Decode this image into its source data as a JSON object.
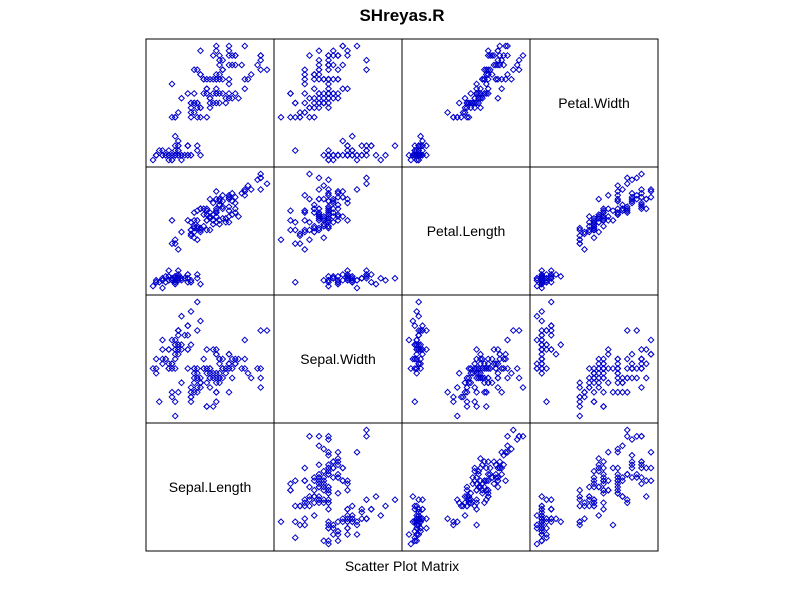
{
  "title": "SHreyas.R",
  "xlabel": "Scatter Plot Matrix",
  "colors": {
    "points": "#0000cc",
    "frame": "#000000",
    "background": "#ffffff"
  },
  "chart_data": {
    "type": "scatter",
    "title": "SHreyas.R",
    "xlabel": "Scatter Plot Matrix",
    "variables": [
      "Sepal.Length",
      "Sepal.Width",
      "Petal.Length",
      "Petal.Width"
    ],
    "diagonal_labels": [
      "Sepal.Length",
      "Sepal.Width",
      "Petal.Length",
      "Petal.Width"
    ],
    "layout": "diagonal from bottom-left to top-right",
    "point_style": "open diamond",
    "ranges": {
      "Sepal.Length": [
        4.3,
        7.9
      ],
      "Sepal.Width": [
        2.0,
        4.4
      ],
      "Petal.Length": [
        1.0,
        6.9
      ],
      "Petal.Width": [
        0.1,
        2.5
      ]
    },
    "rows": [
      [
        5.1,
        3.5,
        1.4,
        0.2
      ],
      [
        4.9,
        3.0,
        1.4,
        0.2
      ],
      [
        4.7,
        3.2,
        1.3,
        0.2
      ],
      [
        4.6,
        3.1,
        1.5,
        0.2
      ],
      [
        5.0,
        3.6,
        1.4,
        0.2
      ],
      [
        5.4,
        3.9,
        1.7,
        0.4
      ],
      [
        4.6,
        3.4,
        1.4,
        0.3
      ],
      [
        5.0,
        3.4,
        1.5,
        0.2
      ],
      [
        4.4,
        2.9,
        1.4,
        0.2
      ],
      [
        4.9,
        3.1,
        1.5,
        0.1
      ],
      [
        5.4,
        3.7,
        1.5,
        0.2
      ],
      [
        4.8,
        3.4,
        1.6,
        0.2
      ],
      [
        4.8,
        3.0,
        1.4,
        0.1
      ],
      [
        4.3,
        3.0,
        1.1,
        0.1
      ],
      [
        5.8,
        4.0,
        1.2,
        0.2
      ],
      [
        5.7,
        4.4,
        1.5,
        0.4
      ],
      [
        5.4,
        3.9,
        1.3,
        0.4
      ],
      [
        5.1,
        3.5,
        1.4,
        0.3
      ],
      [
        5.7,
        3.8,
        1.7,
        0.3
      ],
      [
        5.1,
        3.8,
        1.5,
        0.3
      ],
      [
        5.4,
        3.4,
        1.7,
        0.2
      ],
      [
        5.1,
        3.7,
        1.5,
        0.4
      ],
      [
        4.6,
        3.6,
        1.0,
        0.2
      ],
      [
        5.1,
        3.3,
        1.7,
        0.5
      ],
      [
        4.8,
        3.4,
        1.9,
        0.2
      ],
      [
        5.0,
        3.0,
        1.6,
        0.2
      ],
      [
        5.0,
        3.4,
        1.6,
        0.4
      ],
      [
        5.2,
        3.5,
        1.5,
        0.2
      ],
      [
        5.2,
        3.4,
        1.4,
        0.2
      ],
      [
        4.7,
        3.2,
        1.6,
        0.2
      ],
      [
        4.8,
        3.1,
        1.6,
        0.2
      ],
      [
        5.4,
        3.4,
        1.5,
        0.4
      ],
      [
        5.2,
        4.1,
        1.5,
        0.1
      ],
      [
        5.5,
        4.2,
        1.4,
        0.2
      ],
      [
        4.9,
        3.1,
        1.5,
        0.2
      ],
      [
        5.0,
        3.2,
        1.2,
        0.2
      ],
      [
        5.5,
        3.5,
        1.3,
        0.2
      ],
      [
        4.9,
        3.6,
        1.4,
        0.1
      ],
      [
        4.4,
        3.0,
        1.3,
        0.2
      ],
      [
        5.1,
        3.4,
        1.5,
        0.2
      ],
      [
        5.0,
        3.5,
        1.3,
        0.3
      ],
      [
        4.5,
        2.3,
        1.3,
        0.3
      ],
      [
        4.4,
        3.2,
        1.3,
        0.2
      ],
      [
        5.0,
        3.5,
        1.6,
        0.6
      ],
      [
        5.1,
        3.8,
        1.9,
        0.4
      ],
      [
        4.8,
        3.0,
        1.4,
        0.3
      ],
      [
        5.1,
        3.8,
        1.6,
        0.2
      ],
      [
        4.6,
        3.2,
        1.4,
        0.2
      ],
      [
        5.3,
        3.7,
        1.5,
        0.2
      ],
      [
        5.0,
        3.3,
        1.4,
        0.2
      ],
      [
        7.0,
        3.2,
        4.7,
        1.4
      ],
      [
        6.4,
        3.2,
        4.5,
        1.5
      ],
      [
        6.9,
        3.1,
        4.9,
        1.5
      ],
      [
        5.5,
        2.3,
        4.0,
        1.3
      ],
      [
        6.5,
        2.8,
        4.6,
        1.5
      ],
      [
        5.7,
        2.8,
        4.5,
        1.3
      ],
      [
        6.3,
        3.3,
        4.7,
        1.6
      ],
      [
        4.9,
        2.4,
        3.3,
        1.0
      ],
      [
        6.6,
        2.9,
        4.6,
        1.3
      ],
      [
        5.2,
        2.7,
        3.9,
        1.4
      ],
      [
        5.0,
        2.0,
        3.5,
        1.0
      ],
      [
        5.9,
        3.0,
        4.2,
        1.5
      ],
      [
        6.0,
        2.2,
        4.0,
        1.0
      ],
      [
        6.1,
        2.9,
        4.7,
        1.4
      ],
      [
        5.6,
        2.9,
        3.6,
        1.3
      ],
      [
        6.7,
        3.1,
        4.4,
        1.4
      ],
      [
        5.6,
        3.0,
        4.5,
        1.5
      ],
      [
        5.8,
        2.7,
        4.1,
        1.0
      ],
      [
        6.2,
        2.2,
        4.5,
        1.5
      ],
      [
        5.6,
        2.5,
        3.9,
        1.1
      ],
      [
        5.9,
        3.2,
        4.8,
        1.8
      ],
      [
        6.1,
        2.8,
        4.0,
        1.3
      ],
      [
        6.3,
        2.5,
        4.9,
        1.5
      ],
      [
        6.1,
        2.8,
        4.7,
        1.2
      ],
      [
        6.4,
        2.9,
        4.3,
        1.3
      ],
      [
        6.6,
        3.0,
        4.4,
        1.4
      ],
      [
        6.8,
        2.8,
        4.8,
        1.4
      ],
      [
        6.7,
        3.0,
        5.0,
        1.7
      ],
      [
        6.0,
        2.9,
        4.5,
        1.5
      ],
      [
        5.7,
        2.6,
        3.5,
        1.0
      ],
      [
        5.5,
        2.4,
        3.8,
        1.1
      ],
      [
        5.5,
        2.4,
        3.7,
        1.0
      ],
      [
        5.8,
        2.7,
        3.9,
        1.2
      ],
      [
        6.0,
        2.7,
        5.1,
        1.6
      ],
      [
        5.4,
        3.0,
        4.5,
        1.5
      ],
      [
        6.0,
        3.4,
        4.5,
        1.6
      ],
      [
        6.7,
        3.1,
        4.7,
        1.5
      ],
      [
        6.3,
        2.3,
        4.4,
        1.3
      ],
      [
        5.6,
        3.0,
        4.1,
        1.3
      ],
      [
        5.5,
        2.5,
        4.0,
        1.3
      ],
      [
        5.5,
        2.6,
        4.4,
        1.2
      ],
      [
        6.1,
        3.0,
        4.6,
        1.4
      ],
      [
        5.8,
        2.6,
        4.0,
        1.2
      ],
      [
        5.0,
        2.3,
        3.3,
        1.0
      ],
      [
        5.6,
        2.7,
        4.2,
        1.3
      ],
      [
        5.7,
        3.0,
        4.2,
        1.2
      ],
      [
        5.7,
        2.9,
        4.2,
        1.3
      ],
      [
        6.2,
        2.9,
        4.3,
        1.3
      ],
      [
        5.1,
        2.5,
        3.0,
        1.1
      ],
      [
        5.7,
        2.8,
        4.1,
        1.3
      ],
      [
        6.3,
        3.3,
        6.0,
        2.5
      ],
      [
        5.8,
        2.7,
        5.1,
        1.9
      ],
      [
        7.1,
        3.0,
        5.9,
        2.1
      ],
      [
        6.3,
        2.9,
        5.6,
        1.8
      ],
      [
        6.5,
        3.0,
        5.8,
        2.2
      ],
      [
        7.6,
        3.0,
        6.6,
        2.1
      ],
      [
        4.9,
        2.5,
        4.5,
        1.7
      ],
      [
        7.3,
        2.9,
        6.3,
        1.8
      ],
      [
        6.7,
        2.5,
        5.8,
        1.8
      ],
      [
        7.2,
        3.6,
        6.1,
        2.5
      ],
      [
        6.5,
        3.2,
        5.1,
        2.0
      ],
      [
        6.4,
        2.7,
        5.3,
        1.9
      ],
      [
        6.8,
        3.0,
        5.5,
        2.1
      ],
      [
        5.7,
        2.5,
        5.0,
        2.0
      ],
      [
        5.8,
        2.8,
        5.1,
        2.4
      ],
      [
        6.4,
        3.2,
        5.3,
        2.3
      ],
      [
        6.5,
        3.0,
        5.5,
        1.8
      ],
      [
        7.7,
        3.8,
        6.7,
        2.2
      ],
      [
        7.7,
        2.6,
        6.9,
        2.3
      ],
      [
        6.0,
        2.2,
        5.0,
        1.5
      ],
      [
        6.9,
        3.2,
        5.7,
        2.3
      ],
      [
        5.6,
        2.8,
        4.9,
        2.0
      ],
      [
        7.7,
        2.8,
        6.7,
        2.0
      ],
      [
        6.3,
        2.7,
        4.9,
        1.8
      ],
      [
        6.7,
        3.3,
        5.7,
        2.1
      ],
      [
        7.2,
        3.2,
        6.0,
        1.8
      ],
      [
        6.2,
        2.8,
        4.8,
        1.8
      ],
      [
        6.1,
        3.0,
        4.9,
        1.8
      ],
      [
        6.4,
        2.8,
        5.6,
        2.1
      ],
      [
        7.2,
        3.0,
        5.8,
        1.6
      ],
      [
        7.4,
        2.8,
        6.1,
        1.9
      ],
      [
        7.9,
        3.8,
        6.4,
        2.0
      ],
      [
        6.4,
        2.8,
        5.6,
        2.2
      ],
      [
        6.3,
        2.8,
        5.1,
        1.5
      ],
      [
        6.1,
        2.6,
        5.6,
        1.4
      ],
      [
        7.7,
        3.0,
        6.1,
        2.3
      ],
      [
        6.3,
        3.4,
        5.6,
        2.4
      ],
      [
        6.4,
        3.1,
        5.5,
        1.8
      ],
      [
        6.0,
        3.0,
        4.8,
        1.8
      ],
      [
        6.9,
        3.1,
        5.4,
        2.1
      ],
      [
        6.7,
        3.1,
        5.6,
        2.4
      ],
      [
        6.9,
        3.1,
        5.1,
        2.3
      ],
      [
        5.8,
        2.7,
        5.1,
        1.9
      ],
      [
        6.8,
        3.2,
        5.9,
        2.3
      ],
      [
        6.7,
        3.3,
        5.7,
        2.5
      ],
      [
        6.7,
        3.0,
        5.2,
        2.3
      ],
      [
        6.3,
        2.5,
        5.0,
        1.9
      ],
      [
        6.5,
        3.0,
        5.2,
        2.0
      ],
      [
        6.2,
        3.4,
        5.4,
        2.3
      ],
      [
        5.9,
        3.0,
        5.1,
        1.8
      ]
    ]
  }
}
